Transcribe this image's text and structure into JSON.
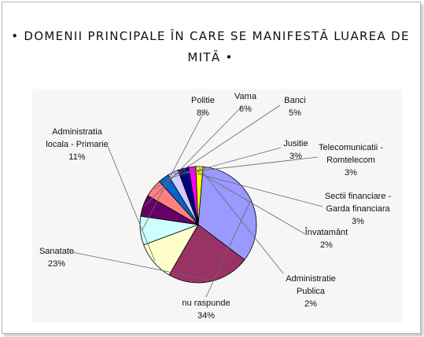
{
  "title": {
    "line1": "• DOMENII PRINCIPALE ÎN CARE SE MANIFESTĂ LUAREA DE",
    "line2": "MITĂ •"
  },
  "chart_data": {
    "type": "pie",
    "title": "• DOMENII PRINCIPALE ÎN CARE SE MANIFESTĂ LUAREA DE MITĂ •",
    "unit": "%",
    "slices": [
      {
        "label": "Administratia locala - Primarie",
        "value": 11,
        "value_label": "11%",
        "color": "#ffffcc"
      },
      {
        "label": "Politie",
        "value": 8,
        "value_label": "8%",
        "color": "#ccffff"
      },
      {
        "label": "Vama",
        "value": 6,
        "value_label": "6%",
        "color": "#660066"
      },
      {
        "label": "Banci",
        "value": 5,
        "value_label": "5%",
        "color": "#ff8080"
      },
      {
        "label": "Jusitie",
        "value": 3,
        "value_label": "3%",
        "color": "#0066cc"
      },
      {
        "label": "Telecomunicatii - Romtelecom",
        "value": 3,
        "value_label": "3%",
        "color": "#ccccff"
      },
      {
        "label": "Sectii financiare - Garda financiara",
        "value": 3,
        "value_label": "3%",
        "color": "#000080"
      },
      {
        "label": "Învatamânt",
        "value": 2,
        "value_label": "2%",
        "color": "#ff00ff"
      },
      {
        "label": "Administratie Publica",
        "value": 2,
        "value_label": "2%",
        "color": "#ffff00"
      },
      {
        "label": "nu raspunde",
        "value": 34,
        "value_label": "34%",
        "color": "#9999ff"
      },
      {
        "label": "Sanatate",
        "value": 23,
        "value_label": "23%",
        "color": "#993366"
      }
    ],
    "legend": "none",
    "data_labels": "outside with leader lines"
  }
}
